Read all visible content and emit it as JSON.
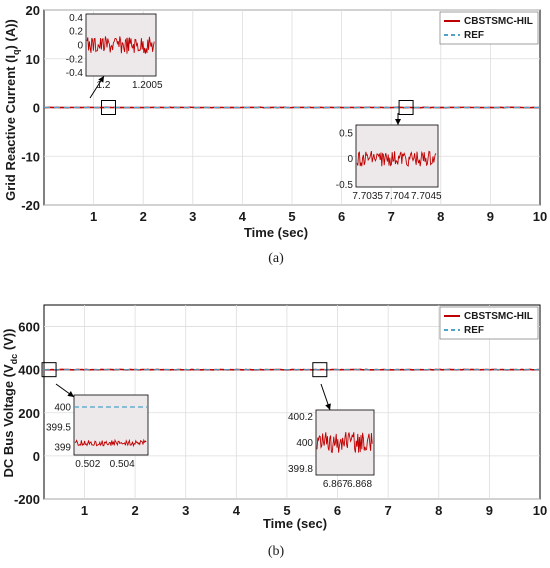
{
  "colors": {
    "primary": "#c00000",
    "reference": "#4fa3c8",
    "zoom_bg": "#ede8ea",
    "grid": "#dddddd"
  },
  "chart_data": [
    {
      "type": "line",
      "panel_caption": "(a)",
      "xlabel": "Time (sec)",
      "ylabel": "Grid Reactive Current (I",
      "ylabel_sub": "q",
      "ylabel_end": ") (A))",
      "xlim": [
        0,
        10
      ],
      "ylim": [
        -20,
        20
      ],
      "xticks": [
        1,
        2,
        3,
        4,
        5,
        6,
        7,
        8,
        9,
        10
      ],
      "yticks": [
        -20,
        -10,
        0,
        10,
        20
      ],
      "grid": true,
      "legend_position": "top-right",
      "series": [
        {
          "name": "CBSTSMC-HIL",
          "style": "solid",
          "value": 0,
          "noise": 0.15
        },
        {
          "name": "REF",
          "style": "dashed",
          "value": 0
        }
      ],
      "insets": [
        {
          "marker_at": [
            1.3,
            0
          ],
          "xlim": [
            1.1998,
            1.2006
          ],
          "ylim": [
            -0.45,
            0.45
          ],
          "xticks": [
            {
              "v": 1.2,
              "t": "1.2"
            },
            {
              "v": 1.2005,
              "t": "1.2005"
            }
          ],
          "yticks": [
            {
              "v": 0.4,
              "t": "0.4"
            },
            {
              "v": 0.2,
              "t": "0.2"
            },
            {
              "v": 0,
              "t": "0"
            },
            {
              "v": -0.2,
              "t": "-0.2"
            },
            {
              "v": -0.4,
              "t": "-0.4"
            }
          ],
          "signal_level": 0,
          "signal_amp": 0.13,
          "show_ref": false
        },
        {
          "marker_at": [
            7.3,
            0
          ],
          "xlim": [
            7.7033,
            7.7047
          ],
          "ylim": [
            -0.55,
            0.65
          ],
          "xticks": [
            {
              "v": 7.7035,
              "t": "7.7035"
            },
            {
              "v": 7.704,
              "t": "7.704"
            },
            {
              "v": 7.7045,
              "t": "7.7045"
            }
          ],
          "yticks": [
            {
              "v": 0.5,
              "t": "0.5"
            },
            {
              "v": 0,
              "t": "0"
            },
            {
              "v": -0.5,
              "t": "-0.5"
            }
          ],
          "signal_level": 0,
          "signal_amp": 0.15,
          "show_ref": false
        }
      ]
    },
    {
      "type": "line",
      "panel_caption": "(b)",
      "xlabel": "Time (sec)",
      "ylabel": "DC Bus Voltage (V",
      "ylabel_sub": "dc",
      "ylabel_end": " (V))",
      "xlim": [
        0.2,
        10
      ],
      "ylim": [
        -200,
        700
      ],
      "xticks": [
        1,
        2,
        3,
        4,
        5,
        6,
        7,
        8,
        9,
        10
      ],
      "yticks": [
        -200,
        0,
        200,
        400,
        600
      ],
      "grid": true,
      "legend_position": "top-right",
      "series": [
        {
          "name": "CBSTSMC-HIL",
          "style": "solid",
          "value": 400,
          "noise": 0.2
        },
        {
          "name": "REF",
          "style": "dashed",
          "value": 400
        }
      ],
      "insets": [
        {
          "marker_at": [
            0.3,
            400
          ],
          "xlim": [
            0.5012,
            0.5055
          ],
          "ylim": [
            398.8,
            400.3
          ],
          "xticks": [
            {
              "v": 0.502,
              "t": "0.502"
            },
            {
              "v": 0.504,
              "t": "0.504"
            }
          ],
          "yticks": [
            {
              "v": 400,
              "t": "400"
            },
            {
              "v": 399.5,
              "t": "399.5"
            },
            {
              "v": 399,
              "t": "399"
            }
          ],
          "signal_level": 399.1,
          "signal_amp": 0.07,
          "show_ref": true
        },
        {
          "marker_at": [
            5.65,
            400
          ],
          "xlim": [
            6.8662,
            6.8686
          ],
          "ylim": [
            399.75,
            400.25
          ],
          "xticks": [
            {
              "v": 6.867,
              "t": "6.867"
            },
            {
              "v": 6.868,
              "t": "6.868"
            }
          ],
          "yticks": [
            {
              "v": 400.2,
              "t": "400.2"
            },
            {
              "v": 400,
              "t": "400"
            },
            {
              "v": 399.8,
              "t": "399.8"
            }
          ],
          "signal_level": 400,
          "signal_amp": 0.08,
          "show_ref": false
        }
      ]
    }
  ]
}
